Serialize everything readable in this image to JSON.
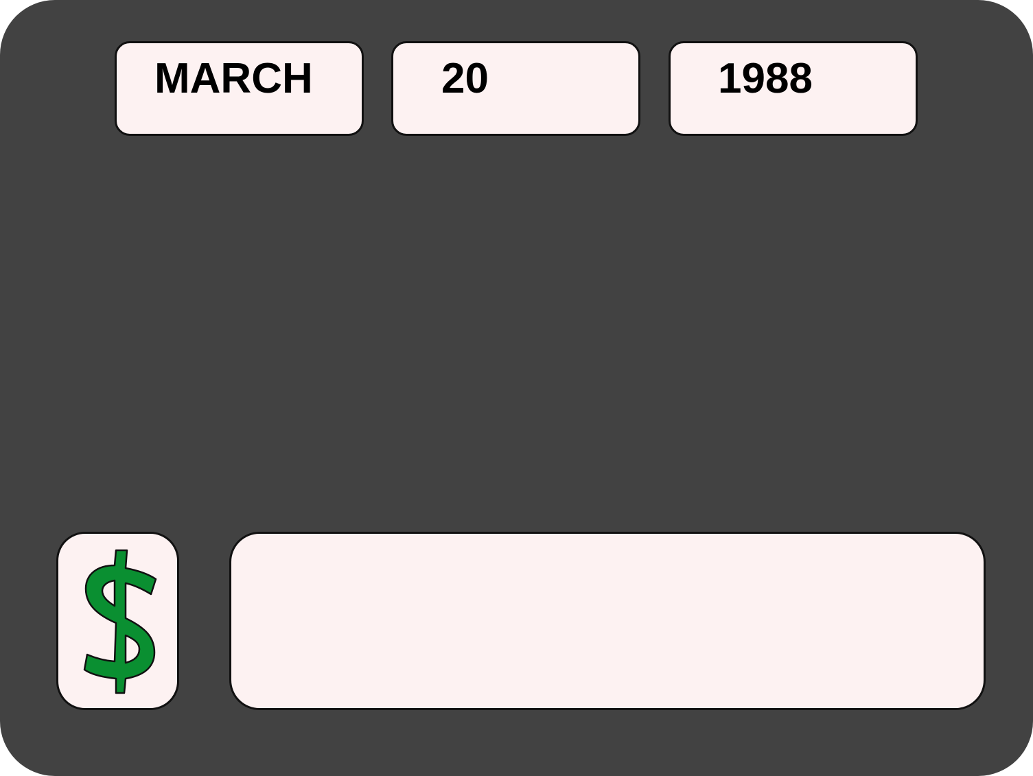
{
  "date": {
    "month": "MARCH",
    "day": "20",
    "year": "1988"
  },
  "amount": {
    "value": ""
  },
  "icons": {
    "money": "dollar-icon"
  },
  "colors": {
    "panel_background": "#424242",
    "field_background": "#fdf2f2",
    "dollar_green": "#0a8f31",
    "outline": "#111111"
  }
}
